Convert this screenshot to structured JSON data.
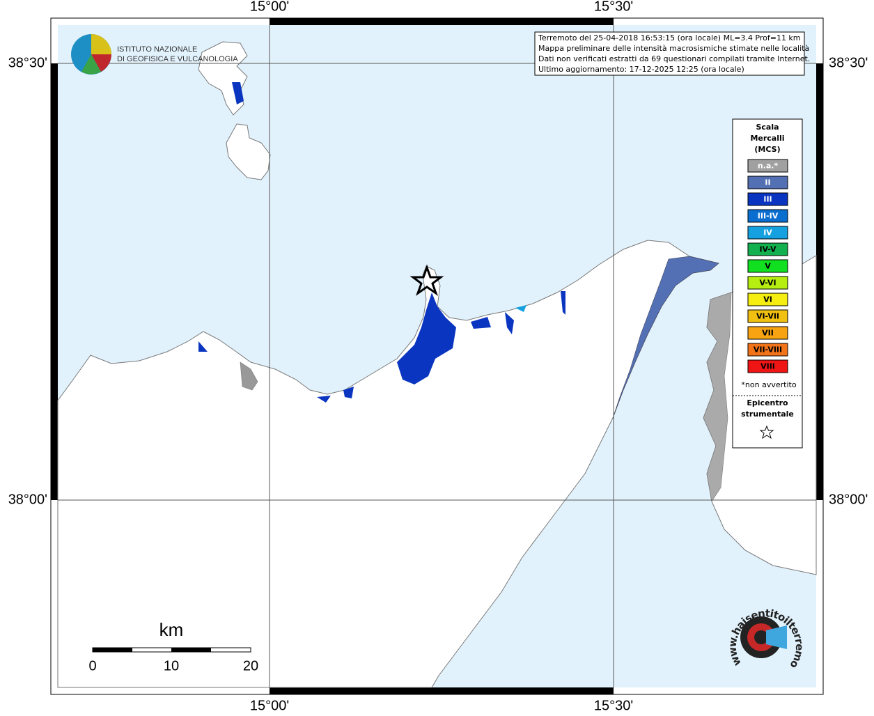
{
  "map": {
    "lon_labels": [
      "15°00'",
      "15°30'"
    ],
    "lat_labels": [
      "38°30'",
      "38°00'"
    ],
    "logo": [
      "ISTITUTO NAZIONALE",
      "DI GEOFISICA E VULCANOLOGIA"
    ],
    "info": [
      "Terremoto del 25-04-2018 16:53:15 (ora locale) ML=3.4 Prof=11 km",
      "Mappa preliminare delle intensità macrosismiche stimate nelle località",
      "Dati non verificati estratti da 69 questionari compilati tramite Internet.",
      "Ultimo aggiornamento: 17-12-2025 12:25 (ora locale)"
    ],
    "legend": {
      "title": [
        "Scala",
        "Mercalli",
        "(MCS)"
      ],
      "items": [
        {
          "label": "n.a.*",
          "color": "#a0a0a0"
        },
        {
          "label": "II",
          "color": "#5470b4"
        },
        {
          "label": "III",
          "color": "#0a35c0"
        },
        {
          "label": "III-IV",
          "color": "#0a6ed1"
        },
        {
          "label": "IV",
          "color": "#15a0e0"
        },
        {
          "label": "IV-V",
          "color": "#12b04e"
        },
        {
          "label": "V",
          "color": "#10e020"
        },
        {
          "label": "V-VI",
          "color": "#b5ee10"
        },
        {
          "label": "VI",
          "color": "#f5ee10"
        },
        {
          "label": "VI-VII",
          "color": "#f2c010"
        },
        {
          "label": "VII",
          "color": "#f7a312"
        },
        {
          "label": "VII-VIII",
          "color": "#f27318"
        },
        {
          "label": "VIII",
          "color": "#f01515"
        }
      ],
      "note": "*non avvertito",
      "epicenter": [
        "Epicentro",
        "strumentale"
      ]
    },
    "scale": {
      "unit": "km",
      "labels": [
        "0",
        "10",
        "20"
      ]
    },
    "watermark": "www.haisentitoilterremoto.it"
  }
}
